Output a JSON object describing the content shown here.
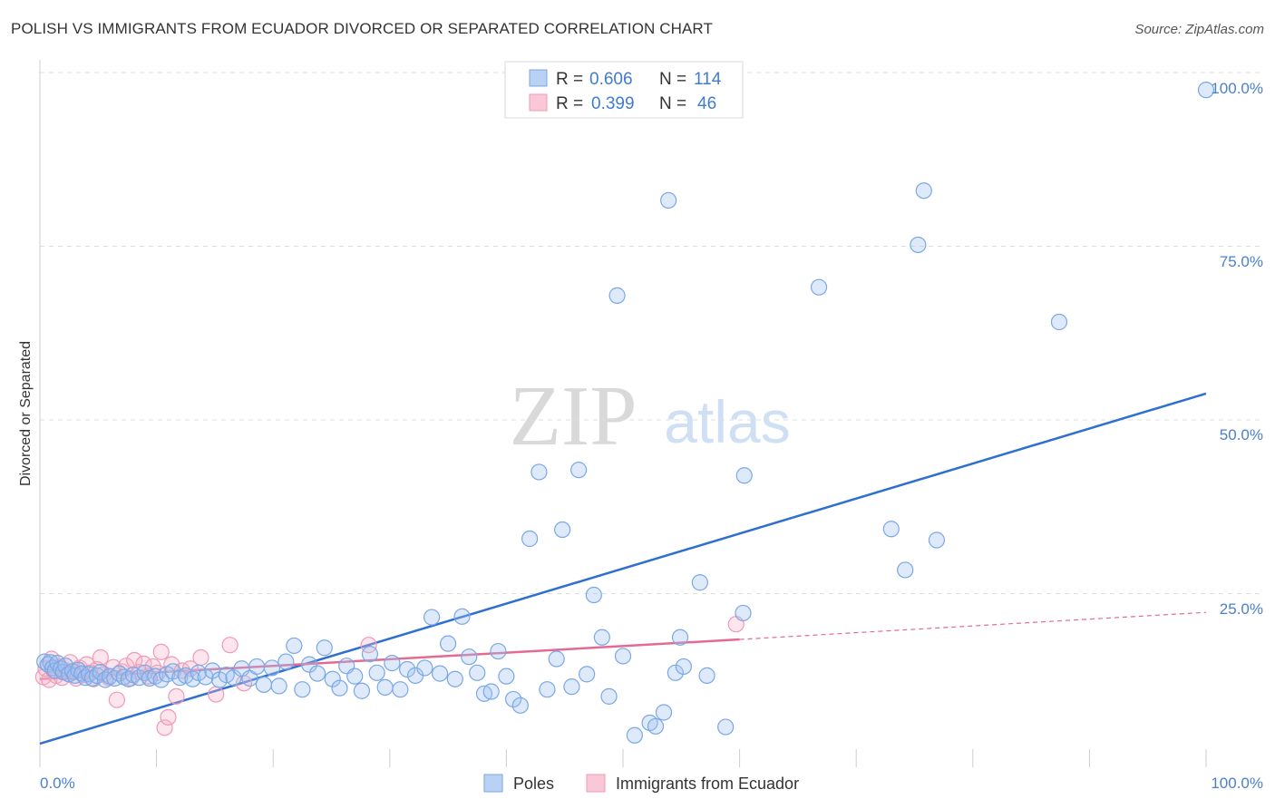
{
  "title": "POLISH VS IMMIGRANTS FROM ECUADOR DIVORCED OR SEPARATED CORRELATION CHART",
  "source": "Source: ZipAtlas.com",
  "watermark": {
    "zip": "ZIP",
    "atlas": "atlas"
  },
  "colors": {
    "poles": "#7aa7e6",
    "poles_fill": "rgba(160,195,240,0.35)",
    "poles_line": "#2e6fd0",
    "ecuador": "#f09ab4",
    "ecuador_fill": "rgba(245,180,200,0.35)",
    "ecuador_line": "#e46a93",
    "grid": "#dddddd",
    "axis_label": "#4a7fd0"
  },
  "legend": {
    "rows": [
      {
        "r_label": "R =",
        "r_value": "0.606",
        "n_label": "N =",
        "n_value": "114"
      },
      {
        "r_label": "R =",
        "r_value": "0.399",
        "n_label": "N =",
        "n_value": "46"
      }
    ]
  },
  "bottom_legend": {
    "poles": "Poles",
    "ecuador": "Immigrants from Ecuador"
  },
  "chart_data": {
    "type": "scatter",
    "title": "POLISH VS IMMIGRANTS FROM ECUADOR DIVORCED OR SEPARATED CORRELATION CHART",
    "xlabel": "",
    "ylabel": "Divorced or Separated",
    "x_tick_labels": [
      "0.0%",
      "100.0%"
    ],
    "y_tick_labels": [
      "25.0%",
      "50.0%",
      "75.0%",
      "100.0%"
    ],
    "xlim": [
      0,
      100
    ],
    "ylim": [
      0,
      100
    ],
    "grid": true,
    "legend_position": "top-center",
    "series": [
      {
        "name": "Poles",
        "R": 0.606,
        "N": 114,
        "trend": {
          "x": [
            0,
            100
          ],
          "y": [
            3.4,
            53.8
          ]
        },
        "points": [
          [
            0.4,
            15.2
          ],
          [
            0.7,
            14.8
          ],
          [
            0.9,
            15.1
          ],
          [
            1.1,
            14.3
          ],
          [
            1.3,
            13.9
          ],
          [
            1.5,
            15.0
          ],
          [
            1.8,
            14.2
          ],
          [
            2.0,
            13.7
          ],
          [
            2.2,
            14.6
          ],
          [
            2.5,
            13.4
          ],
          [
            2.8,
            13.8
          ],
          [
            3.0,
            13.2
          ],
          [
            3.3,
            14.0
          ],
          [
            3.6,
            13.5
          ],
          [
            3.9,
            12.9
          ],
          [
            4.2,
            13.4
          ],
          [
            4.5,
            12.8
          ],
          [
            4.9,
            13.2
          ],
          [
            5.2,
            13.7
          ],
          [
            5.6,
            12.6
          ],
          [
            6.0,
            13.1
          ],
          [
            6.4,
            12.8
          ],
          [
            6.8,
            13.5
          ],
          [
            7.2,
            13.0
          ],
          [
            7.6,
            12.7
          ],
          [
            8.0,
            13.3
          ],
          [
            8.5,
            12.9
          ],
          [
            9.0,
            13.6
          ],
          [
            9.4,
            12.8
          ],
          [
            9.9,
            13.1
          ],
          [
            10.4,
            12.6
          ],
          [
            10.9,
            13.4
          ],
          [
            11.4,
            13.8
          ],
          [
            12.0,
            12.9
          ],
          [
            12.5,
            13.2
          ],
          [
            13.1,
            12.7
          ],
          [
            13.6,
            13.6
          ],
          [
            14.2,
            13.0
          ],
          [
            14.8,
            13.9
          ],
          [
            15.4,
            12.6
          ],
          [
            16.0,
            13.3
          ],
          [
            16.6,
            12.9
          ],
          [
            17.3,
            14.2
          ],
          [
            18.0,
            12.8
          ],
          [
            18.6,
            14.5
          ],
          [
            19.2,
            11.9
          ],
          [
            19.9,
            14.3
          ],
          [
            20.5,
            11.7
          ],
          [
            21.1,
            15.2
          ],
          [
            21.8,
            17.5
          ],
          [
            22.5,
            11.2
          ],
          [
            23.1,
            14.8
          ],
          [
            23.8,
            13.5
          ],
          [
            24.4,
            17.2
          ],
          [
            25.1,
            12.7
          ],
          [
            25.7,
            11.4
          ],
          [
            26.3,
            14.6
          ],
          [
            27.0,
            13.1
          ],
          [
            27.6,
            11.0
          ],
          [
            28.3,
            16.3
          ],
          [
            28.9,
            13.6
          ],
          [
            29.6,
            11.5
          ],
          [
            30.2,
            15.0
          ],
          [
            30.9,
            11.2
          ],
          [
            31.5,
            14.1
          ],
          [
            32.2,
            13.2
          ],
          [
            33.0,
            14.3
          ],
          [
            33.6,
            21.6
          ],
          [
            34.3,
            13.5
          ],
          [
            35.0,
            17.8
          ],
          [
            35.6,
            12.7
          ],
          [
            36.2,
            21.7
          ],
          [
            36.8,
            15.9
          ],
          [
            37.5,
            13.6
          ],
          [
            38.1,
            10.6
          ],
          [
            38.7,
            10.9
          ],
          [
            39.3,
            16.7
          ],
          [
            40.0,
            13.1
          ],
          [
            40.6,
            9.8
          ],
          [
            41.2,
            8.9
          ],
          [
            42.0,
            32.9
          ],
          [
            42.8,
            42.5
          ],
          [
            43.5,
            11.2
          ],
          [
            44.3,
            15.6
          ],
          [
            44.8,
            34.2
          ],
          [
            45.6,
            11.6
          ],
          [
            46.2,
            42.8
          ],
          [
            46.9,
            13.4
          ],
          [
            47.5,
            24.8
          ],
          [
            48.2,
            18.7
          ],
          [
            48.8,
            10.2
          ],
          [
            49.5,
            67.9
          ],
          [
            50.0,
            16.0
          ],
          [
            51.0,
            4.6
          ],
          [
            52.3,
            6.4
          ],
          [
            52.8,
            5.9
          ],
          [
            53.5,
            7.9
          ],
          [
            53.9,
            81.6
          ],
          [
            54.5,
            13.6
          ],
          [
            54.9,
            18.7
          ],
          [
            55.2,
            14.5
          ],
          [
            56.6,
            26.6
          ],
          [
            57.2,
            13.2
          ],
          [
            58.8,
            5.8
          ],
          [
            60.3,
            22.2
          ],
          [
            60.4,
            42.0
          ],
          [
            66.8,
            69.1
          ],
          [
            73.0,
            34.3
          ],
          [
            74.2,
            28.4
          ],
          [
            75.3,
            75.2
          ],
          [
            75.8,
            83.0
          ],
          [
            76.9,
            32.7
          ],
          [
            87.4,
            64.1
          ],
          [
            100.0,
            97.5
          ]
        ]
      },
      {
        "name": "Immigrants from Ecuador",
        "R": 0.399,
        "N": 46,
        "trend": {
          "x": [
            0,
            60
          ],
          "y": [
            12.7,
            18.4
          ]
        },
        "trend_dashed": {
          "x": [
            60,
            100
          ],
          "y": [
            18.4,
            22.3
          ]
        },
        "points": [
          [
            0.3,
            13.0
          ],
          [
            0.5,
            14.2
          ],
          [
            0.8,
            12.6
          ],
          [
            1.0,
            15.6
          ],
          [
            1.2,
            13.8
          ],
          [
            1.4,
            13.2
          ],
          [
            1.7,
            14.5
          ],
          [
            1.9,
            12.9
          ],
          [
            2.1,
            14.0
          ],
          [
            2.4,
            13.5
          ],
          [
            2.6,
            15.1
          ],
          [
            2.9,
            13.7
          ],
          [
            3.1,
            12.8
          ],
          [
            3.4,
            14.3
          ],
          [
            3.7,
            13.3
          ],
          [
            4.0,
            14.8
          ],
          [
            4.3,
            13.6
          ],
          [
            4.6,
            12.7
          ],
          [
            4.9,
            14.1
          ],
          [
            5.2,
            15.8
          ],
          [
            5.5,
            13.4
          ],
          [
            5.9,
            12.9
          ],
          [
            6.3,
            14.4
          ],
          [
            6.6,
            9.7
          ],
          [
            7.0,
            13.8
          ],
          [
            7.4,
            14.6
          ],
          [
            7.8,
            12.8
          ],
          [
            8.1,
            15.4
          ],
          [
            8.5,
            13.7
          ],
          [
            8.9,
            14.9
          ],
          [
            9.3,
            13.1
          ],
          [
            9.7,
            14.5
          ],
          [
            10.1,
            13.6
          ],
          [
            10.4,
            16.6
          ],
          [
            10.7,
            5.7
          ],
          [
            11.0,
            7.2
          ],
          [
            11.3,
            14.8
          ],
          [
            11.7,
            10.2
          ],
          [
            12.2,
            13.9
          ],
          [
            12.9,
            14.2
          ],
          [
            13.8,
            15.8
          ],
          [
            15.1,
            10.5
          ],
          [
            16.3,
            17.6
          ],
          [
            17.5,
            12.1
          ],
          [
            28.2,
            17.6
          ],
          [
            59.7,
            20.6
          ]
        ]
      }
    ]
  }
}
